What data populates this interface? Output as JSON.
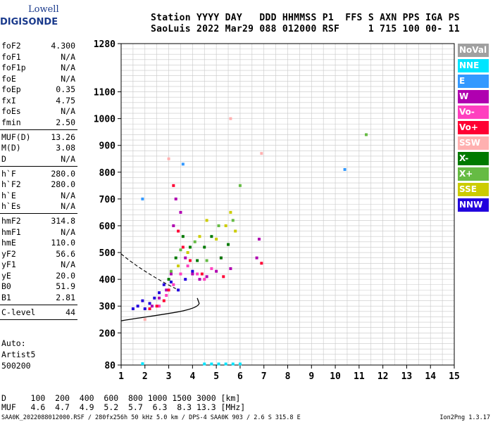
{
  "logo": {
    "top": "Lowell",
    "bottom": "DIGISONDE"
  },
  "header": {
    "line1": "Station YYYY DAY   DDD HHMMSS P1  FFS S AXN PPS IGA PS",
    "line2": "SaoLuis 2022 Mar29 088 012000 RSF     1 715 100 00- 11"
  },
  "params": [
    {
      "name": "foF2",
      "value": "4.300"
    },
    {
      "name": "foF1",
      "value": "N/A"
    },
    {
      "name": "foF1p",
      "value": "N/A"
    },
    {
      "name": "foE",
      "value": "N/A"
    },
    {
      "name": "foEp",
      "value": "0.35"
    },
    {
      "name": "fxI",
      "value": "4.75"
    },
    {
      "name": "foEs",
      "value": "N/A"
    },
    {
      "name": "fmin",
      "value": "2.50",
      "sep": true
    },
    {
      "name": "MUF(D)",
      "value": "13.26"
    },
    {
      "name": "M(D)",
      "value": "3.08"
    },
    {
      "name": "D",
      "value": "N/A",
      "sep": true
    },
    {
      "name": "h`F",
      "value": "280.0"
    },
    {
      "name": "h`F2",
      "value": "280.0"
    },
    {
      "name": "h`E",
      "value": "N/A"
    },
    {
      "name": "h`Es",
      "value": "N/A",
      "sep": true
    },
    {
      "name": "hmF2",
      "value": "314.8"
    },
    {
      "name": "hmF1",
      "value": "N/A"
    },
    {
      "name": "hmE",
      "value": "110.0"
    },
    {
      "name": "yF2",
      "value": "56.6"
    },
    {
      "name": "yF1",
      "value": "N/A"
    },
    {
      "name": "yE",
      "value": "20.0"
    },
    {
      "name": "B0",
      "value": "51.9"
    },
    {
      "name": "B1",
      "value": "2.81",
      "sep": true
    },
    {
      "name": "C-level",
      "value": "44",
      "sep": true
    }
  ],
  "auto": {
    "label": "Auto:",
    "artist": "Artist5",
    "version": "500200"
  },
  "d_row": "D     100  200  400  600  800 1000 1500 3000 [km]",
  "muf_row": "MUF   4.6  4.7  4.9  5.2  5.7  6.3  8.3 13.3 [MHz]",
  "footer": "SAA0K_2022088012000.RSF / 280fx256h 50 kHz 5.0 km / DPS-4 SAA0K 903 / 2.6 S 315.8 E",
  "version_tag": "Ion2Png 1.3.17",
  "legend": [
    {
      "label": "NoVal",
      "color": "#a0a0a0"
    },
    {
      "label": "NNE",
      "color": "#00e5ff"
    },
    {
      "label": "E",
      "color": "#3399ff"
    },
    {
      "label": "W",
      "color": "#b000b0"
    },
    {
      "label": "Vo-",
      "color": "#ff3fbf"
    },
    {
      "label": "Vo+",
      "color": "#ff0033"
    },
    {
      "label": "SSW",
      "color": "#ffb0b0"
    },
    {
      "label": "X-",
      "color": "#007a00"
    },
    {
      "label": "X+",
      "color": "#66bb44"
    },
    {
      "label": "SSE",
      "color": "#cccc00"
    },
    {
      "label": "NNW",
      "color": "#2200dd"
    }
  ],
  "chart_data": {
    "type": "scatter",
    "xlim": [
      1,
      15
    ],
    "ylim": [
      80,
      1280
    ],
    "x_ticks": [
      1,
      2,
      3,
      4,
      5,
      6,
      7,
      8,
      9,
      10,
      11,
      12,
      13,
      14,
      15
    ],
    "y_ticks": [
      80,
      200,
      300,
      400,
      500,
      600,
      700,
      800,
      900,
      1000,
      1100,
      1280
    ],
    "grid": true,
    "series": [
      {
        "name": "NNW",
        "color": "#2200dd",
        "points": [
          [
            1.5,
            290
          ],
          [
            1.7,
            300
          ],
          [
            1.9,
            320
          ],
          [
            2.0,
            290
          ],
          [
            2.2,
            310
          ],
          [
            2.4,
            330
          ],
          [
            2.6,
            350
          ],
          [
            2.8,
            380
          ],
          [
            3.1,
            390
          ],
          [
            3.4,
            360
          ],
          [
            3.7,
            400
          ],
          [
            4.0,
            430
          ]
        ]
      },
      {
        "name": "W",
        "color": "#b000b0",
        "points": [
          [
            2.3,
            300
          ],
          [
            2.6,
            330
          ],
          [
            2.9,
            360
          ],
          [
            3.1,
            420
          ],
          [
            3.2,
            600
          ],
          [
            3.3,
            700
          ],
          [
            3.5,
            650
          ],
          [
            3.7,
            480
          ],
          [
            4.0,
            420
          ],
          [
            4.3,
            400
          ],
          [
            4.6,
            410
          ],
          [
            5.0,
            430
          ],
          [
            5.6,
            440
          ],
          [
            6.7,
            480
          ],
          [
            6.8,
            550
          ]
        ]
      },
      {
        "name": "Vo-",
        "color": "#ff3fbf",
        "points": [
          [
            2.6,
            300
          ],
          [
            2.9,
            340
          ],
          [
            3.2,
            380
          ],
          [
            3.5,
            420
          ],
          [
            3.8,
            450
          ],
          [
            4.2,
            420
          ],
          [
            4.5,
            400
          ],
          [
            4.8,
            440
          ],
          [
            5.2,
            480
          ]
        ]
      },
      {
        "name": "Vo+",
        "color": "#ff0033",
        "points": [
          [
            2.2,
            290
          ],
          [
            2.5,
            300
          ],
          [
            2.8,
            320
          ],
          [
            3.0,
            360
          ],
          [
            3.2,
            750
          ],
          [
            3.4,
            580
          ],
          [
            3.6,
            520
          ],
          [
            3.9,
            470
          ],
          [
            4.4,
            420
          ],
          [
            5.3,
            410
          ],
          [
            6.9,
            460
          ]
        ]
      },
      {
        "name": "X-",
        "color": "#007a00",
        "points": [
          [
            3.0,
            400
          ],
          [
            3.3,
            480
          ],
          [
            3.6,
            560
          ],
          [
            3.9,
            520
          ],
          [
            4.2,
            470
          ],
          [
            4.5,
            520
          ],
          [
            4.8,
            560
          ],
          [
            5.2,
            480
          ],
          [
            5.5,
            530
          ]
        ]
      },
      {
        "name": "X+",
        "color": "#66bb44",
        "points": [
          [
            3.1,
            430
          ],
          [
            3.5,
            510
          ],
          [
            4.1,
            540
          ],
          [
            4.6,
            470
          ],
          [
            5.1,
            600
          ],
          [
            5.7,
            620
          ],
          [
            6.0,
            750
          ],
          [
            11.3,
            940
          ]
        ]
      },
      {
        "name": "SSE",
        "color": "#cccc00",
        "points": [
          [
            3.4,
            450
          ],
          [
            3.8,
            500
          ],
          [
            4.3,
            560
          ],
          [
            4.6,
            620
          ],
          [
            5.0,
            550
          ],
          [
            5.4,
            600
          ],
          [
            5.6,
            650
          ],
          [
            5.8,
            580
          ]
        ]
      },
      {
        "name": "E",
        "color": "#3399ff",
        "points": [
          [
            1.9,
            700
          ],
          [
            3.6,
            830
          ],
          [
            10.4,
            810
          ]
        ]
      },
      {
        "name": "NNE",
        "color": "#00e5ff",
        "points": [
          [
            4.5,
            84
          ],
          [
            4.8,
            84
          ],
          [
            5.1,
            84
          ],
          [
            5.4,
            84
          ],
          [
            5.7,
            84
          ],
          [
            6.0,
            84
          ],
          [
            1.9,
            85
          ]
        ]
      },
      {
        "name": "SSW",
        "color": "#ffb0b0",
        "points": [
          [
            2.0,
            250
          ],
          [
            3.0,
            850
          ],
          [
            5.6,
            1000
          ],
          [
            6.9,
            870
          ]
        ]
      }
    ]
  }
}
